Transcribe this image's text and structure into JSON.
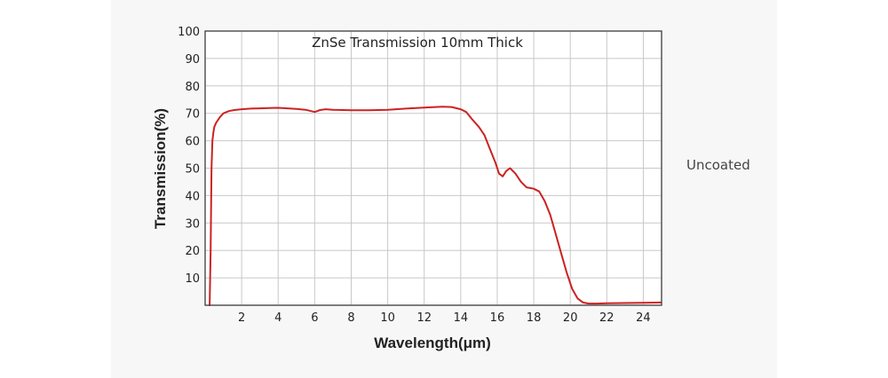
{
  "note": "Uncoated",
  "colors": {
    "line": "#cc2222",
    "grid": "#c8c8c8",
    "axis": "#444444",
    "panel": "#f7f7f7"
  },
  "chart_data": {
    "type": "line",
    "title": "ZnSe Transmission 10mm Thick",
    "xlabel": "Wavelength(μm)",
    "ylabel": "Transmission(%)",
    "xlim": [
      0,
      25
    ],
    "ylim": [
      0,
      100
    ],
    "xticks": [
      "2",
      "4",
      "6",
      "8",
      "10",
      "12",
      "14",
      "16",
      "18",
      "20",
      "22",
      "24"
    ],
    "yticks": [
      "10",
      "20",
      "30",
      "40",
      "50",
      "60",
      "70",
      "80",
      "90",
      "100"
    ],
    "grid": true,
    "series": [
      {
        "color": "#cc2222",
        "x": [
          0.2,
          0.25,
          0.3,
          0.35,
          0.4,
          0.45,
          0.5,
          0.6,
          0.8,
          1.0,
          1.3,
          1.6,
          2.0,
          2.5,
          3.0,
          3.5,
          4.0,
          4.5,
          5.0,
          5.5,
          6.0,
          6.3,
          6.6,
          7.0,
          8.0,
          9.0,
          10.0,
          11.0,
          12.0,
          13.0,
          13.5,
          14.0,
          14.3,
          14.6,
          15.0,
          15.3,
          15.6,
          15.9,
          16.1,
          16.3,
          16.5,
          16.7,
          17.0,
          17.3,
          17.6,
          18.0,
          18.3,
          18.6,
          18.9,
          19.2,
          19.5,
          19.8,
          20.1,
          20.4,
          20.7,
          21.0,
          21.5,
          22.0,
          23.0,
          24.0,
          25.0
        ],
        "y": [
          0,
          0,
          20,
          50,
          60,
          63,
          65,
          66.5,
          68.5,
          70,
          70.8,
          71.2,
          71.5,
          71.7,
          71.8,
          71.9,
          72,
          71.8,
          71.6,
          71.3,
          70.5,
          71.2,
          71.5,
          71.3,
          71.1,
          71.1,
          71.3,
          71.7,
          72.1,
          72.4,
          72.3,
          71.5,
          70.5,
          68,
          65,
          62,
          57,
          52,
          48,
          47,
          49,
          50,
          48,
          45,
          43,
          42.5,
          41.5,
          38,
          33,
          26,
          19,
          12,
          6,
          2.5,
          1,
          0.6,
          0.6,
          0.7,
          0.8,
          0.9,
          1.0
        ]
      }
    ]
  }
}
